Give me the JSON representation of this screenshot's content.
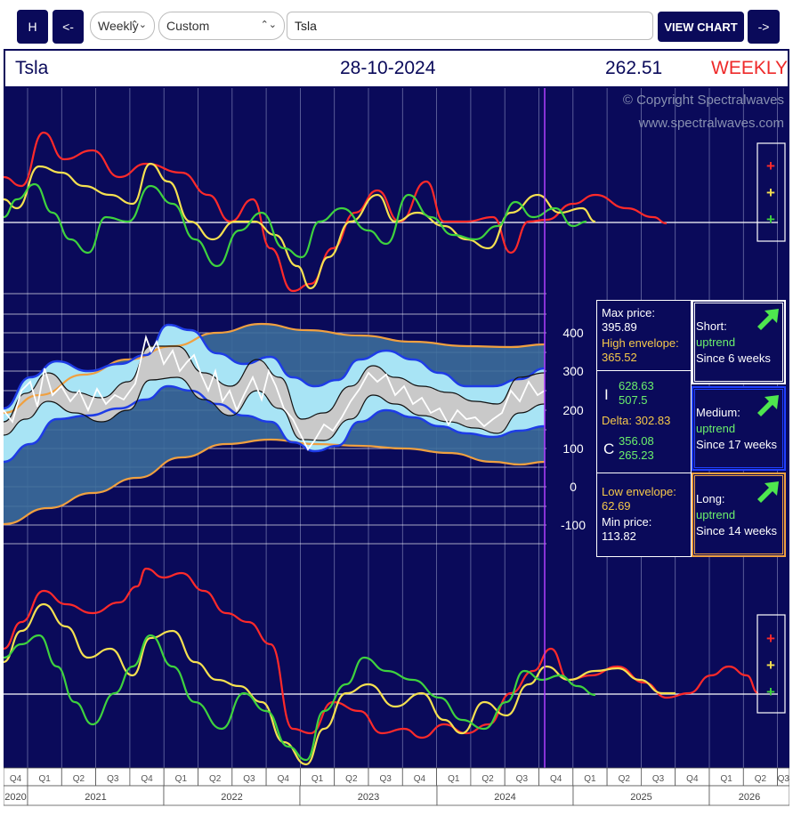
{
  "toolbar": {
    "home_label": "H",
    "back_label": "<-",
    "period_value": "Weekly",
    "range_value": "Custom",
    "symbol_value": "Tsla",
    "view_chart_label": "VIEW CHART",
    "forward_label": "->"
  },
  "header": {
    "symbol": "Tsla",
    "date": "28-10-2024",
    "price": "262.51",
    "period": "WEEKLY"
  },
  "watermark": {
    "copyright": "© Copyright Spectralwaves",
    "url": "www.spectralwaves.com"
  },
  "legend_symbol": "+",
  "stats": {
    "max_price_label": "Max price:",
    "max_price": "395.89",
    "high_env_label": "High envelope:",
    "high_env": "365.52",
    "i_label": "I",
    "i_val1": "628.63",
    "i_val2": "507.5",
    "delta_label": "Delta: 302.83",
    "c_label": "C",
    "c_val1": "356.08",
    "c_val2": "265.23",
    "low_env_label": "Low envelope:",
    "low_env": "62.69",
    "min_price_label": "Min price:",
    "min_price": "113.82"
  },
  "trends": [
    {
      "term": "Short:",
      "status": "uptrend",
      "since": "Since 6 weeks",
      "border": "#ffffff"
    },
    {
      "term": "Medium:",
      "status": "uptrend",
      "since": "Since 17 weeks",
      "border": "#2040ff"
    },
    {
      "term": "Long:",
      "status": "uptrend",
      "since": "Since 14 weeks",
      "border": "#f0a040"
    }
  ],
  "colors": {
    "background": "#0a0a5a",
    "red": "#ff2a2a",
    "yellow": "#f5e050",
    "green": "#3ed23e",
    "envelope": "#f0a040",
    "band": "#1e3ce6",
    "band_fill": "#a8e4f5",
    "core_fill": "#c8c8c8",
    "marker": "#b040ff"
  },
  "chart_data": {
    "type": "line",
    "yticks": [
      "400",
      "300",
      "200",
      "100",
      "0",
      "-100"
    ],
    "quarters": [
      "Q4",
      "Q1",
      "Q2",
      "Q3",
      "Q4",
      "Q1",
      "Q2",
      "Q3",
      "Q4",
      "Q1",
      "Q2",
      "Q3",
      "Q4",
      "Q1",
      "Q2",
      "Q3",
      "Q4",
      "Q1",
      "Q2",
      "Q3",
      "Q4",
      "Q1",
      "Q2",
      "Q3"
    ],
    "years": [
      "2020",
      "2021",
      "2022",
      "2023",
      "2024",
      "2025",
      "2026"
    ],
    "current_date": "28-10-2024"
  }
}
